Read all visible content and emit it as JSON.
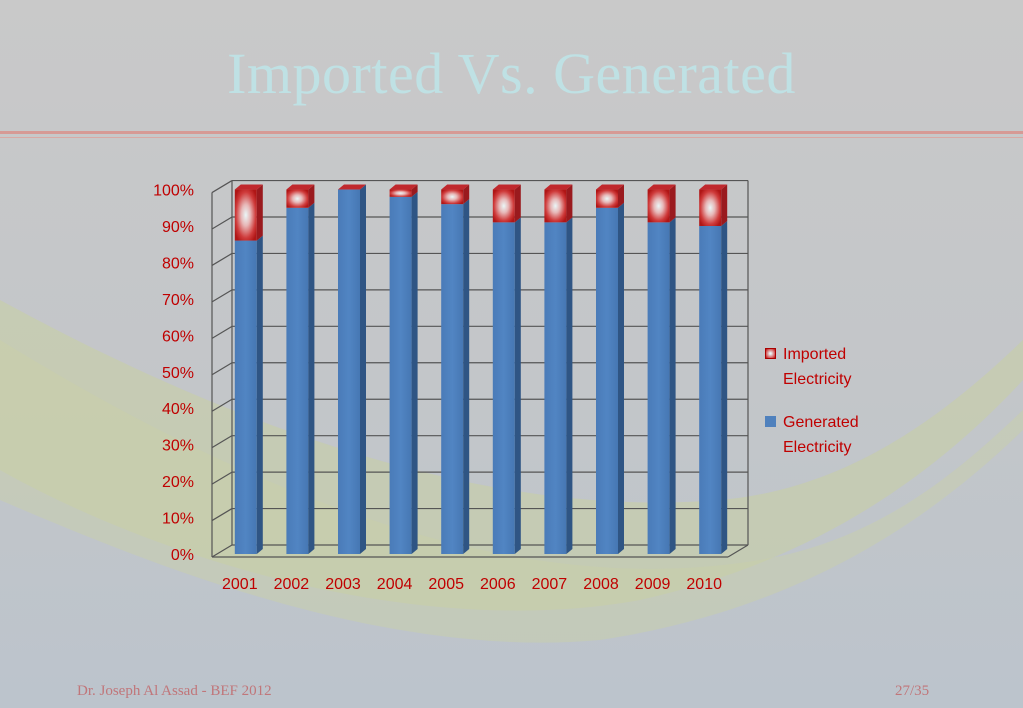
{
  "slide": {
    "title": "Imported Vs. Generated",
    "footer_left": "Dr. Joseph Al Assad - BEF 2012",
    "footer_right": "27/35"
  },
  "chart_data": {
    "type": "bar",
    "stacked": true,
    "percent_stacked": true,
    "categories": [
      "2001",
      "2002",
      "2003",
      "2004",
      "2005",
      "2006",
      "2007",
      "2008",
      "2009",
      "2010"
    ],
    "series": [
      {
        "name": "Generated Electricity",
        "values": [
          86,
          95,
          100,
          98,
          96,
          91,
          91,
          95,
          91,
          90
        ]
      },
      {
        "name": "Imported Electricity",
        "values": [
          14,
          5,
          0,
          2,
          4,
          9,
          9,
          5,
          9,
          10
        ]
      }
    ],
    "ylim": [
      0,
      100
    ],
    "yticks": [
      "0%",
      "10%",
      "20%",
      "30%",
      "40%",
      "50%",
      "60%",
      "70%",
      "80%",
      "90%",
      "100%"
    ],
    "legend": [
      "Imported Electricity",
      "Generated Electricity"
    ],
    "legend_position": "right",
    "grid": true,
    "colors": {
      "generated": "#4f81bd",
      "imported": "#c0282d",
      "text": "#c00000"
    }
  }
}
